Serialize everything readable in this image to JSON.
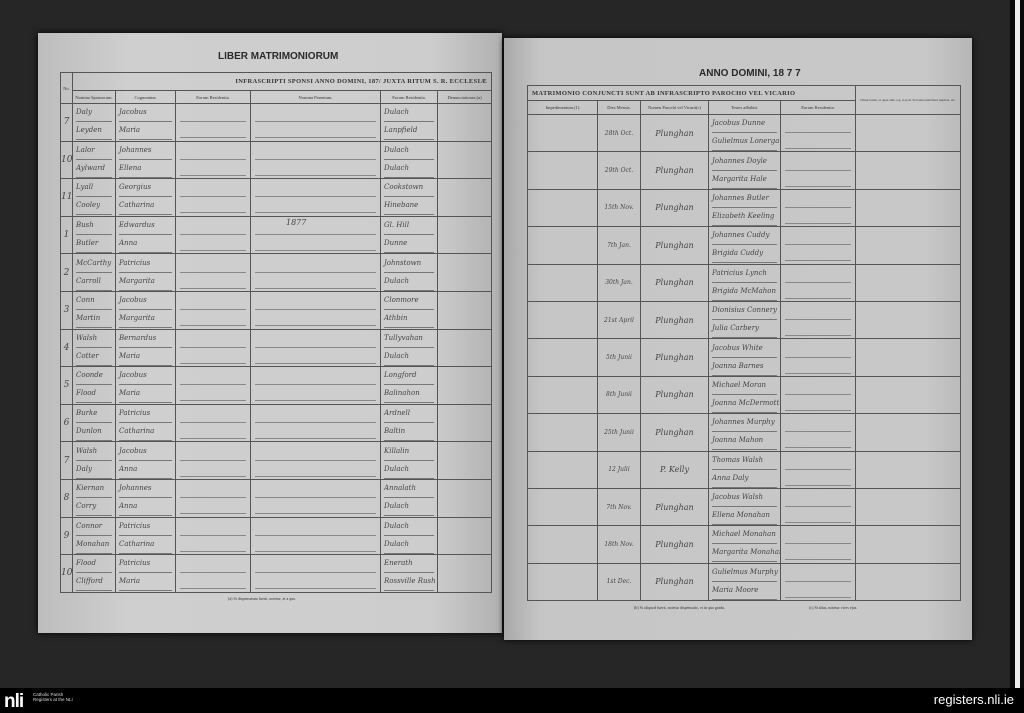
{
  "left_page": {
    "title": "LIBER MATRIMONIORUM",
    "header": "INFRASCRIPTI SPONSI ANNO DOMINI, 187/ JUXTA RITUM S. R. ECCLESIÆ",
    "columns": [
      "No.",
      "Nomina Sponsorum.",
      "Cognomina.",
      "Eorum Residentia.",
      "Nomina Parentum.",
      "Eorum Residentia.",
      "Denunciationes.(a)"
    ],
    "inline_year": "1877",
    "rows": [
      {
        "no": "7",
        "surnames": [
          "Daly",
          "Leyden"
        ],
        "names": [
          "Jacobus",
          "Maria"
        ],
        "residence": [
          "Dulach",
          "Lanpfield"
        ]
      },
      {
        "no": "10",
        "surnames": [
          "Lalor",
          "Aylward"
        ],
        "names": [
          "Johannes",
          "Ellena"
        ],
        "residence": [
          "Dulach",
          "Dulach"
        ]
      },
      {
        "no": "11",
        "surnames": [
          "Lyall",
          "Cooley"
        ],
        "names": [
          "Georgius",
          "Catharina"
        ],
        "residence": [
          "Cookstown",
          "Hinebane"
        ]
      },
      {
        "no": "1",
        "surnames": [
          "Bush",
          "Butler"
        ],
        "names": [
          "Edwardus",
          "Anna"
        ],
        "residence": [
          "Gl. Hill",
          "Dunne"
        ]
      },
      {
        "no": "2",
        "surnames": [
          "McCarthy",
          "Carroll"
        ],
        "names": [
          "Patricius",
          "Margarita"
        ],
        "residence": [
          "Johnstown",
          "Dulach"
        ]
      },
      {
        "no": "3",
        "surnames": [
          "Conn",
          "Martin"
        ],
        "names": [
          "Jacobus",
          "Margarita"
        ],
        "residence": [
          "Clonmore",
          "Athbin"
        ]
      },
      {
        "no": "4",
        "surnames": [
          "Walsh",
          "Cotter"
        ],
        "names": [
          "Bernardus",
          "Maria"
        ],
        "residence": [
          "Tullyvahan",
          "Dulach"
        ]
      },
      {
        "no": "5",
        "surnames": [
          "Coonde",
          "Flood"
        ],
        "names": [
          "Jacobus",
          "Maria"
        ],
        "residence": [
          "Longford",
          "Balinahon"
        ]
      },
      {
        "no": "6",
        "surnames": [
          "Burke",
          "Dunlon"
        ],
        "names": [
          "Patricius",
          "Catharina"
        ],
        "residence": [
          "Ardnell",
          "Baltin"
        ]
      },
      {
        "no": "7",
        "surnames": [
          "Walsh",
          "Daly"
        ],
        "names": [
          "Jacobus",
          "Anna"
        ],
        "residence": [
          "Killalin",
          "Dulach"
        ]
      },
      {
        "no": "8",
        "surnames": [
          "Kiernan",
          "Corry"
        ],
        "names": [
          "Johannes",
          "Anna"
        ],
        "residence": [
          "Annalath",
          "Dulach"
        ]
      },
      {
        "no": "9",
        "surnames": [
          "Connor",
          "Monahan"
        ],
        "names": [
          "Patricius",
          "Catharina"
        ],
        "residence": [
          "Dulach",
          "Dulach"
        ]
      },
      {
        "no": "10",
        "surnames": [
          "Flood",
          "Clifford"
        ],
        "names": [
          "Patricius",
          "Maria"
        ],
        "residence": [
          "Enerath",
          "Rossville Rush"
        ]
      }
    ],
    "footnote": "(a) Si dispensatum fuerit, notetur, et a quo."
  },
  "right_page": {
    "title": "ANNO DOMINI, 18 7 7",
    "header": "MATRIMONIO CONJUNCTI SUNT AB INFRASCRIPTO PAROCHO VEL VICARIO",
    "columns": [
      "Impedimentum.(1)",
      "Dies Mensis.",
      "Nomen Parochi vel Vicarii(c)",
      "Testes adhibiti.",
      "Eorum Residentia.",
      "Observanda, si quae sint; e.g. si post 3a bannorum fiunt nuptiae, etc."
    ],
    "rows": [
      {
        "date": "28th Oct.",
        "priest": "Plunghan",
        "witnesses": [
          "Jacobus Dunne",
          "Gulielmus Lonergan"
        ]
      },
      {
        "date": "29th Oct.",
        "priest": "Plunghan",
        "witnesses": [
          "Johannes Doyle",
          "Margarita Hale"
        ]
      },
      {
        "date": "15th Nov.",
        "priest": "Plunghan",
        "witnesses": [
          "Johannes Butler",
          "Elizabeth Keeling"
        ]
      },
      {
        "date": "7th Jan.",
        "priest": "Plunghan",
        "witnesses": [
          "Johannes Cuddy",
          "Brigida Cuddy"
        ]
      },
      {
        "date": "30th Jan.",
        "priest": "Plunghan",
        "witnesses": [
          "Patricius Lynch",
          "Brigida McMahon"
        ]
      },
      {
        "date": "21st April",
        "priest": "Plunghan",
        "witnesses": [
          "Dionisius Connery",
          "Julia Carbery"
        ]
      },
      {
        "date": "5th Junii",
        "priest": "Plunghan",
        "witnesses": [
          "Jacobus White",
          "Joanna Barnes"
        ]
      },
      {
        "date": "8th Junii",
        "priest": "Plunghan",
        "witnesses": [
          "Michael Moran",
          "Joanna McDermott"
        ]
      },
      {
        "date": "25th Junii",
        "priest": "Plunghan",
        "witnesses": [
          "Johannes Murphy",
          "Joanna Mahon"
        ]
      },
      {
        "date": "12 Julii",
        "priest": "P. Kelly",
        "witnesses": [
          "Thomas Walsh",
          "Anna Daly"
        ]
      },
      {
        "date": "7th Nov.",
        "priest": "Plunghan",
        "witnesses": [
          "Jacobus Walsh",
          "Ellena Monahan"
        ]
      },
      {
        "date": "18th Nov.",
        "priest": "Plunghan",
        "witnesses": [
          "Michael Monahan",
          "Margarita Monahan"
        ]
      },
      {
        "date": "1st Dec.",
        "priest": "Plunghan",
        "witnesses": [
          "Gulielmus Murphy",
          "Maria Moore"
        ]
      }
    ],
    "footnote_left": "(b) Si aliquod fuerit, notetur dispensatio, et in quo gradu.",
    "footnote_right": "(c) Si alius, notetur vices ejus."
  },
  "footer": {
    "logo": "nli",
    "logo_text": "Catholic Parish Registers at the NLI",
    "site": "registers.nli.ie"
  }
}
